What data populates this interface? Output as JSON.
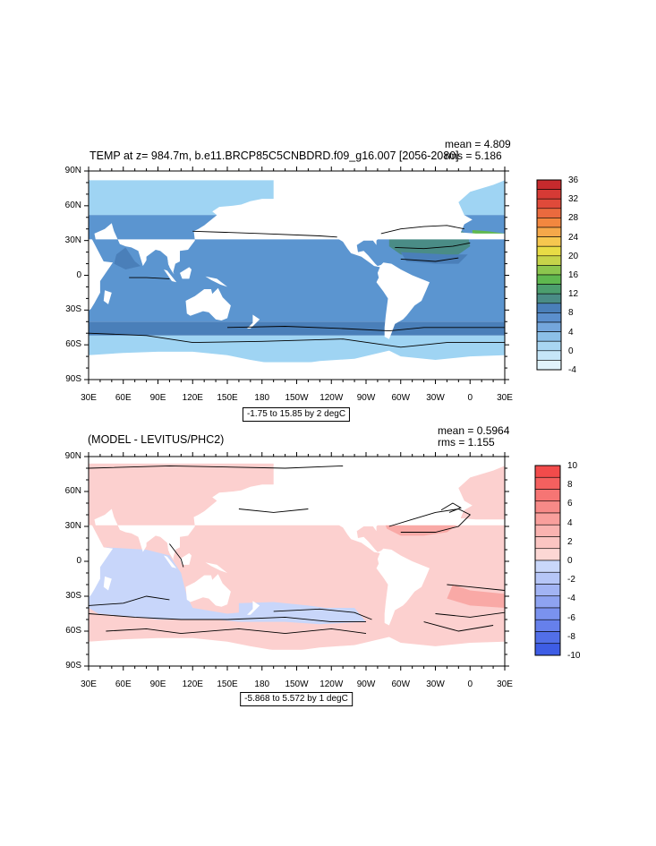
{
  "panel1": {
    "title": "TEMP at z= 984.7m, b.e11.BRCP85C5CNBDRD.f09_g16.007 [2056-2080]",
    "stat_mean": "mean = 4.809",
    "stat_rms": "rms = 5.186",
    "range_label": "-1.75 to 15.85 by 2 degC",
    "lat_labels": [
      "90N",
      "60N",
      "30N",
      "0",
      "30S",
      "60S",
      "90S"
    ],
    "lon_labels": [
      "30E",
      "60E",
      "90E",
      "120E",
      "150E",
      "180",
      "150W",
      "120W",
      "90W",
      "60W",
      "30W",
      "0",
      "30E"
    ],
    "colorbar": {
      "labels": [
        "36",
        "32",
        "28",
        "24",
        "20",
        "16",
        "12",
        "8",
        "4",
        "0",
        "-4"
      ],
      "colors": [
        "#c62a2d",
        "#d63a35",
        "#e04a3a",
        "#ea6a3e",
        "#f2873f",
        "#f5a84a",
        "#f6c74f",
        "#e8dc45",
        "#c6d44a",
        "#8cc64e",
        "#5fb84f",
        "#4c9e6e",
        "#4a8c86",
        "#4a7fb9",
        "#5b8fcd",
        "#74a6dc",
        "#8cc0e8",
        "#a9d6f2",
        "#c6e6f8",
        "#e1f3fb"
      ]
    },
    "colors": {
      "polar": "#9fd4f3",
      "deep": "#5b95d0",
      "midlat": "#4a7fb9",
      "atl_warm": "#4a8c86",
      "med": "#5fb84f"
    }
  },
  "panel2": {
    "title": "(MODEL - LEVITUS/PHC2)",
    "stat_mean": "mean = 0.5964",
    "stat_rms": "rms = 1.155",
    "range_label": "-5.868 to 5.572 by 1 degC",
    "lat_labels": [
      "90N",
      "60N",
      "30N",
      "0",
      "30S",
      "60S",
      "90S"
    ],
    "lon_labels": [
      "30E",
      "60E",
      "90E",
      "120E",
      "150E",
      "180",
      "150W",
      "120W",
      "90W",
      "60W",
      "30W",
      "0",
      "30E"
    ],
    "colorbar": {
      "labels": [
        "10",
        "8",
        "6",
        "4",
        "2",
        "0",
        "-2",
        "-4",
        "-6",
        "-8",
        "-10"
      ],
      "colors": [
        "#f24b4b",
        "#f4605f",
        "#f67574",
        "#f78a88",
        "#f99f9c",
        "#fab3b0",
        "#fbc5c2",
        "#fcd7d4",
        "#c9d7fa",
        "#b6c6f7",
        "#a2b4f4",
        "#8ea3f1",
        "#7a92ee",
        "#6680eb",
        "#526fe8",
        "#3e5de5"
      ]
    },
    "colors": {
      "pos1": "#fcd0cf",
      "pos2": "#f9a9a6",
      "pos3": "#f58684",
      "neg1": "#c8d6fa",
      "neg2": "#9fb2f2"
    }
  }
}
